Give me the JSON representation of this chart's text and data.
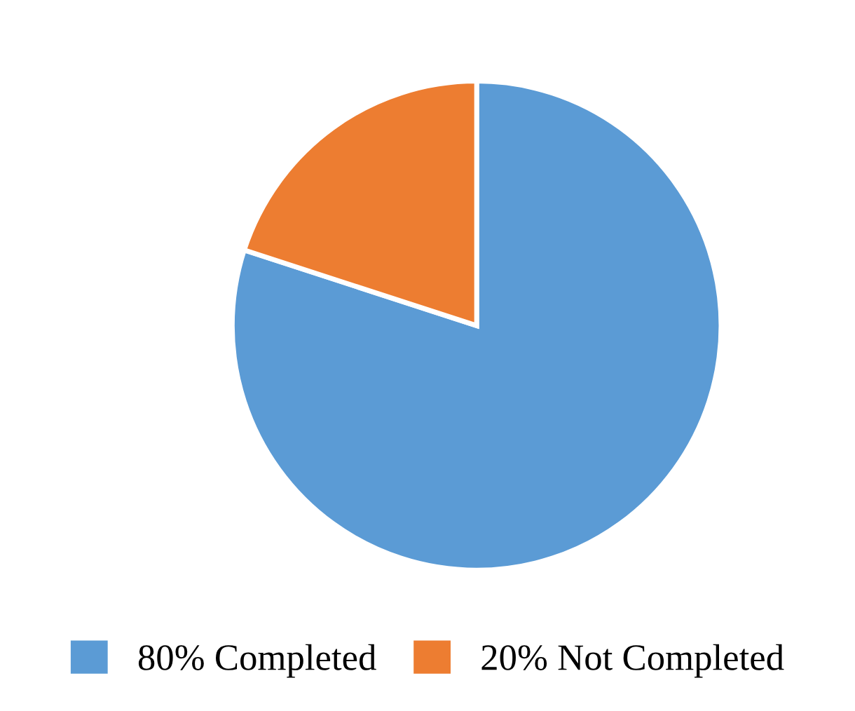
{
  "chart_data": {
    "type": "pie",
    "categories": [
      "80% Completed",
      "20% Not Completed"
    ],
    "values": [
      80,
      20
    ],
    "colors": [
      "#5b9bd5",
      "#ed7d31"
    ],
    "legend": "bottom"
  }
}
